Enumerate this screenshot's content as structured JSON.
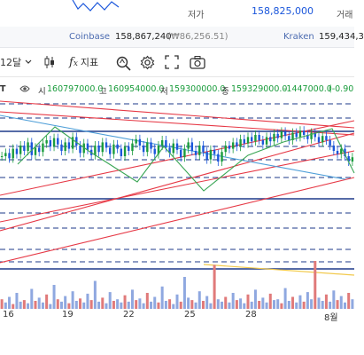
{
  "top": {
    "low_label": "저가",
    "low_value": "158,825,000",
    "cut_label": "거래"
  },
  "exchanges": [
    {
      "name": "Coinbase",
      "value": "158,867,240",
      "sub": "(₩86,256.51)"
    },
    {
      "name": "Kraken",
      "value": "159,434,3"
    }
  ],
  "toolbar": {
    "interval": "12달",
    "indicators_label": "지표"
  },
  "ohlc": {
    "open_label": "시",
    "open": "160797000.0",
    "high_label": "고",
    "high": "160954000.0",
    "low_label": "저",
    "low": "159300000.0",
    "close_label": "종",
    "close": "159329000.0",
    "change": "-1447000.0",
    "change_pct": "(-0.90"
  },
  "colors": {
    "up": "#1a9c3c",
    "down": "#1a56db",
    "trend_red": "#e63946",
    "channel_blue": "#1e3a8a",
    "zigzag_green": "#3aa655",
    "avg_yellow": "#f2c94c"
  },
  "chart_data": {
    "type": "candlestick",
    "x_tick_labels": [
      "16",
      "19",
      "22",
      "25",
      "28",
      "8월"
    ],
    "price_line": [
      45,
      48,
      43,
      52,
      47,
      55,
      50,
      58,
      46,
      53,
      49,
      57,
      60,
      54,
      62,
      56,
      50,
      58,
      52,
      63,
      55,
      48,
      57,
      51,
      46,
      55,
      49,
      58,
      53,
      47,
      56,
      52,
      45,
      54,
      50,
      57,
      61,
      55,
      49,
      58,
      52,
      47,
      55,
      60,
      53,
      48,
      57,
      51,
      44,
      52,
      58,
      50,
      46,
      55,
      49,
      42,
      51,
      47,
      40,
      49,
      55,
      52,
      58,
      54,
      61,
      57,
      63,
      59,
      65,
      60,
      56,
      63,
      59,
      66,
      62,
      68,
      64,
      60,
      67,
      63,
      69,
      65,
      61,
      67,
      63,
      58,
      64,
      60,
      55,
      50,
      47,
      52,
      45,
      40,
      44
    ],
    "volume": [
      12,
      8,
      15,
      6,
      20,
      9,
      11,
      7,
      25,
      10,
      14,
      8,
      18,
      6,
      30,
      12,
      9,
      16,
      7,
      22,
      10,
      13,
      8,
      19,
      11,
      35,
      9,
      14,
      7,
      21,
      10,
      12,
      8,
      17,
      9,
      24,
      11,
      13,
      7,
      20,
      9,
      15,
      8,
      28,
      10,
      12,
      6,
      18,
      9,
      40,
      14,
      11,
      8,
      22,
      10,
      16,
      7,
      55,
      12,
      9,
      15,
      8,
      20,
      11,
      13,
      7,
      18,
      9,
      24,
      10,
      14,
      8,
      19,
      11,
      12,
      7,
      26,
      10,
      15,
      8,
      17,
      9,
      21,
      12,
      60,
      14,
      10,
      18,
      9,
      23,
      11,
      16,
      8,
      20,
      12
    ]
  }
}
